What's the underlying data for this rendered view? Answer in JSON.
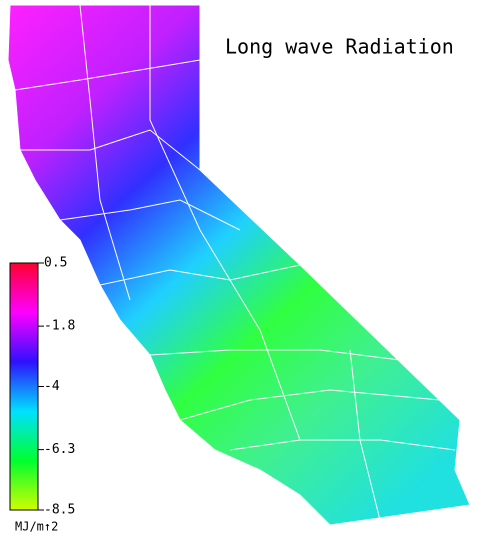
{
  "title": "Long wave Radiation",
  "legend": {
    "range": [
      -8.5,
      0.5
    ],
    "ticks": [
      0.5,
      -1.8,
      -4.0,
      -6.3,
      -8.5
    ],
    "unit": "MJ/m↑2",
    "colors": [
      "#ff0030",
      "#ff00ff",
      "#3010ff",
      "#00e0ff",
      "#00ff30",
      "#d0ff00"
    ]
  }
}
